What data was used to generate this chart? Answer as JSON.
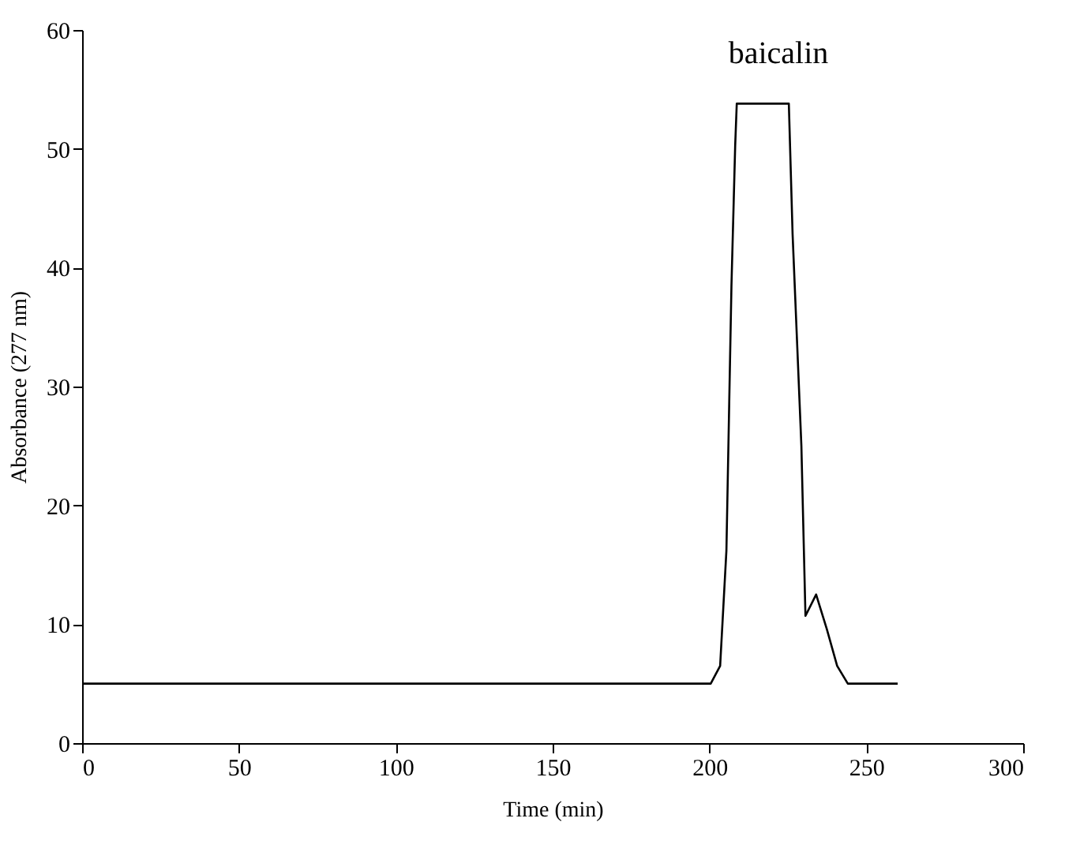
{
  "chart_data": {
    "type": "line",
    "xlabel": "Time (min)",
    "ylabel": "Absorbance (277 nm)",
    "annotations": [
      "baicalin"
    ],
    "x": [
      0,
      50,
      100,
      150,
      200,
      200.4,
      203.4,
      205.4,
      207,
      208.2,
      208.7,
      225.3,
      226.5,
      229.3,
      230.6,
      234,
      237.4,
      240.7,
      244.1,
      260
    ],
    "series": [
      {
        "color": "#000000",
        "values": [
          5,
          5,
          5,
          5,
          5,
          5,
          6.5,
          16.2,
          38.4,
          50.3,
          53.8,
          53.8,
          42.8,
          25,
          10.7,
          12.5,
          9.6,
          6.5,
          5,
          5
        ]
      }
    ],
    "xlim": [
      0,
      300
    ],
    "xticks": [
      0,
      50,
      100,
      150,
      200,
      250,
      300
    ],
    "ylim": [
      0,
      60
    ],
    "yticks": [
      0,
      10,
      20,
      30,
      40,
      50,
      60
    ],
    "grid": false,
    "marker": "none",
    "line_style": "solid"
  }
}
